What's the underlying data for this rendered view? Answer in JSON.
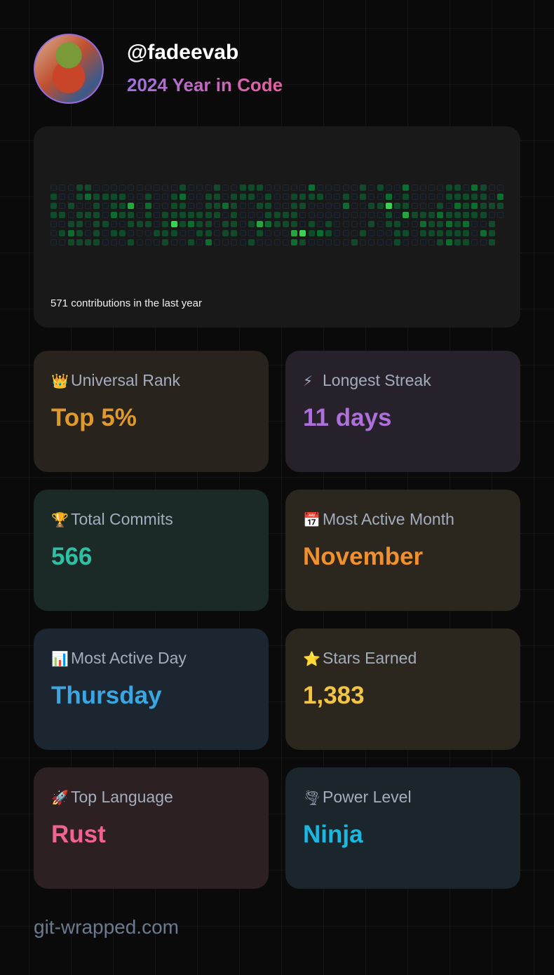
{
  "header": {
    "username": "@fadeevab",
    "subtitle": "2024 Year in Code"
  },
  "contributions": {
    "summary": "571 contributions in the last year",
    "level_colors": [
      "#161b22",
      "#0f4a2a",
      "#0b6e30",
      "#26a641",
      "#39d353"
    ],
    "rows": [
      "00011000000000010001001110000020000010100200001102100",
      "10012111100100120011011101001111001010020100001111102",
      "10100101130200110011210011001100002001141100010212111",
      "11011102110101111111010001111000000000010311121111100",
      "0011011001110141211011013211101010000101100211212001-",
      "0121010110001110011011001000341210001000110111111021-",
      "0011110001000100102000010000210000010000100001211001-"
    ]
  },
  "cards": [
    {
      "emoji": "👑",
      "icon": "crown-icon",
      "label": "Universal Rank",
      "value": "Top 5%",
      "bg": "#29231d",
      "color": "#e09a2c"
    },
    {
      "emoji": "⚡",
      "icon": "lightning-icon",
      "label": "Longest Streak",
      "value": "11 days",
      "bg": "#26212b",
      "color": "#b070dc"
    },
    {
      "emoji": "🏆",
      "icon": "trophy-icon",
      "label": "Total Commits",
      "value": "566",
      "bg": "#1b2a26",
      "color": "#2ebfa5"
    },
    {
      "emoji": "📅",
      "icon": "calendar-icon",
      "label": "Most Active Month",
      "value": "November",
      "bg": "#2b261e",
      "color": "#f0902e"
    },
    {
      "emoji": "📊",
      "icon": "bar-chart-icon",
      "label": "Most Active Day",
      "value": "Thursday",
      "bg": "#1c2630",
      "color": "#3aa6e2"
    },
    {
      "emoji": "⭐",
      "icon": "star-icon",
      "label": "Stars Earned",
      "value": "1,383",
      "bg": "#2c271e",
      "color": "#f2c545"
    },
    {
      "emoji": "🚀",
      "icon": "rocket-icon",
      "label": "Top Language",
      "value": "Rust",
      "bg": "#2d2022",
      "color": "#f06292"
    },
    {
      "emoji": "🌪",
      "icon": "tornado-icon",
      "label": "Power Level",
      "value": "Ninja",
      "bg": "#1b262c",
      "color": "#1ab8e0"
    }
  ],
  "footer": {
    "site": "git-wrapped.com"
  }
}
